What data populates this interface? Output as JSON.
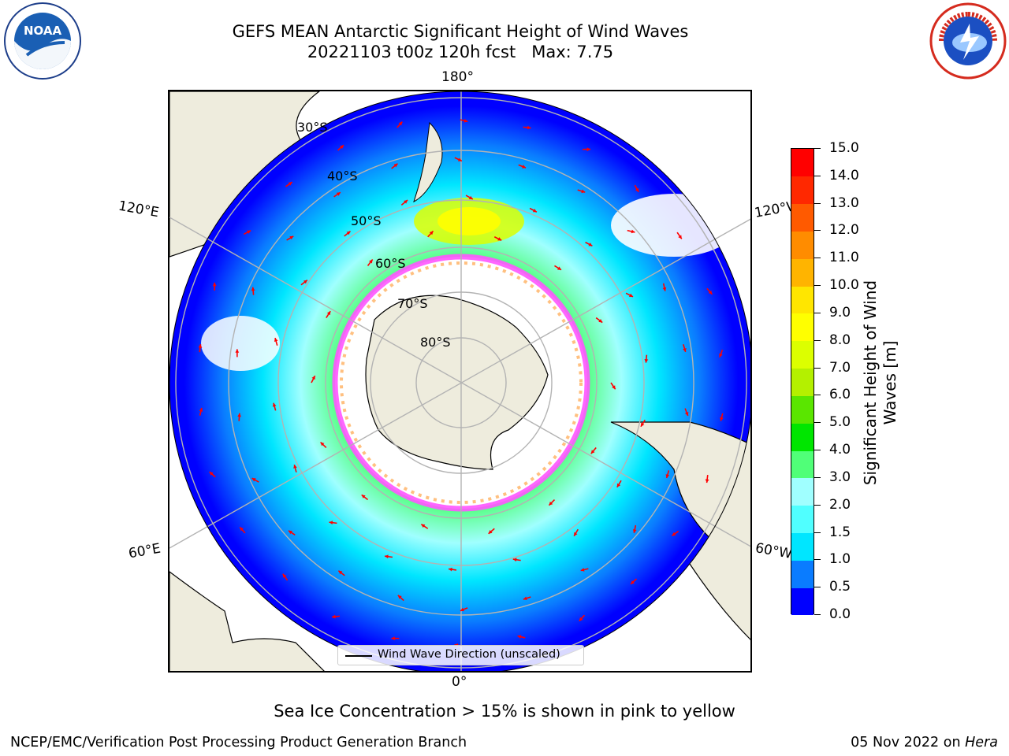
{
  "title": {
    "line1": "GEFS MEAN Antarctic Significant Height of Wind Waves",
    "line2": "20221103 t00z 120h fcst   Max: 7.75"
  },
  "logos": {
    "left": {
      "name": "noaa-logo",
      "text": "NOAA"
    },
    "right": {
      "name": "nws-logo",
      "text": "NATIONAL WEATHER SERVICE"
    }
  },
  "map": {
    "projection": "south-polar-stereographic",
    "longitude_labels": {
      "top": "180°",
      "bottom": "0°",
      "upper_left": "120°E",
      "upper_right": "120°W",
      "lower_left": "60°E",
      "lower_right": "60°W"
    },
    "latitude_labels": [
      "30°S",
      "40°S",
      "50°S",
      "60°S",
      "70°S",
      "80°S"
    ],
    "land_color": "#eeecdd",
    "sea_ice_colors": [
      "#ff55ff",
      "#ffb060",
      "#ffe070"
    ],
    "arrow_color": "#ff0000",
    "legend": {
      "label": "Wind Wave Direction (unscaled)"
    }
  },
  "colorbar": {
    "title_line1": "Significant Height of Wind",
    "title_line2": "Waves [m]",
    "tick_labels": [
      "15.0",
      "14.0",
      "13.0",
      "12.0",
      "11.0",
      "10.0",
      "9.0",
      "8.0",
      "7.0",
      "6.0",
      "5.0",
      "4.0",
      "3.0",
      "2.0",
      "1.5",
      "1.0",
      "0.5",
      "0.0"
    ],
    "colors": [
      "#0000ff",
      "#0a7cff",
      "#00e6ff",
      "#50ffff",
      "#a0ffff",
      "#50ff78",
      "#00e600",
      "#5ae600",
      "#b4f000",
      "#dcff00",
      "#ffff00",
      "#ffe600",
      "#ffb400",
      "#ff8c00",
      "#ff5a00",
      "#ff2800",
      "#ff0000"
    ]
  },
  "sea_ice_note": "Sea Ice Concentration > 15% is shown in pink to yellow",
  "footer": {
    "left": "NCEP/EMC/Verification Post Processing Product Generation Branch",
    "right_prefix": "05 Nov 2022 on",
    "right_host": "Hera"
  }
}
